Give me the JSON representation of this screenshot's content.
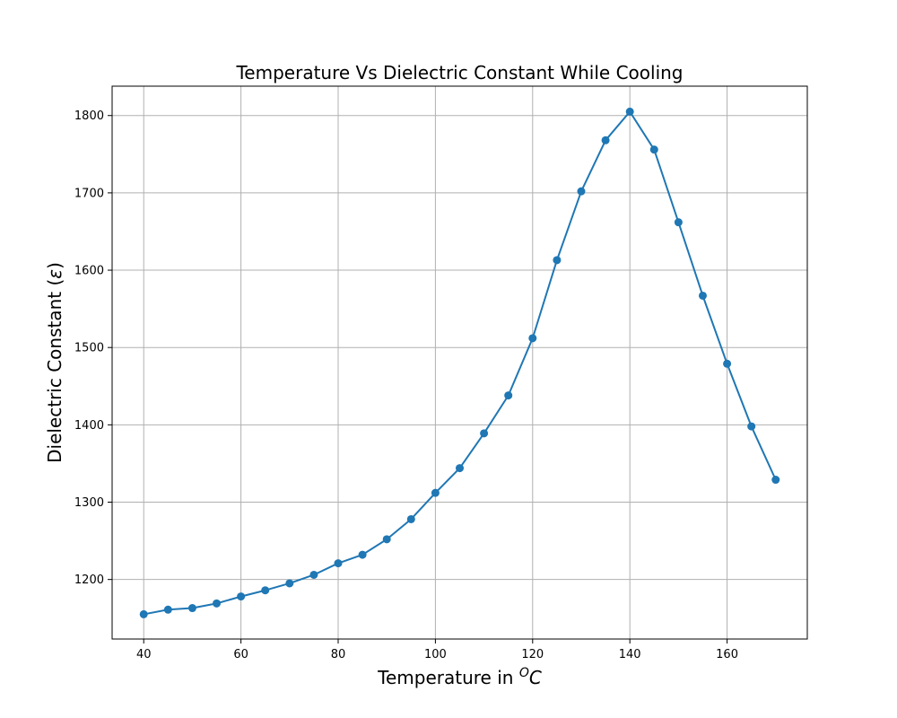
{
  "chart_data": {
    "type": "line",
    "title": "Temperature Vs Dielectric Constant While Cooling",
    "xlabel": "Temperature in ",
    "xlabel_unit_sup": "O",
    "xlabel_unit": "C",
    "ylabel": "Dielectric Constant (",
    "ylabel_symbol": "ε",
    "ylabel_close": ")",
    "xlim": [
      33.5,
      176.5
    ],
    "ylim": [
      1123,
      1838
    ],
    "xticks": [
      40,
      60,
      80,
      100,
      120,
      140,
      160
    ],
    "yticks": [
      1200,
      1300,
      1400,
      1500,
      1600,
      1700,
      1800
    ],
    "grid": true,
    "markers": true,
    "series": [
      {
        "color": "#1f77b4",
        "x": [
          40,
          45,
          50,
          55,
          60,
          65,
          70,
          75,
          80,
          85,
          90,
          95,
          100,
          105,
          110,
          115,
          120,
          125,
          130,
          135,
          140,
          145,
          150,
          155,
          160,
          165,
          170
        ],
        "y": [
          1155,
          1161,
          1163,
          1169,
          1178,
          1186,
          1195,
          1206,
          1221,
          1232,
          1252,
          1278,
          1312,
          1344,
          1389,
          1438,
          1512,
          1613,
          1702,
          1768,
          1805,
          1756,
          1662,
          1567,
          1479,
          1398,
          1329
        ]
      }
    ]
  }
}
